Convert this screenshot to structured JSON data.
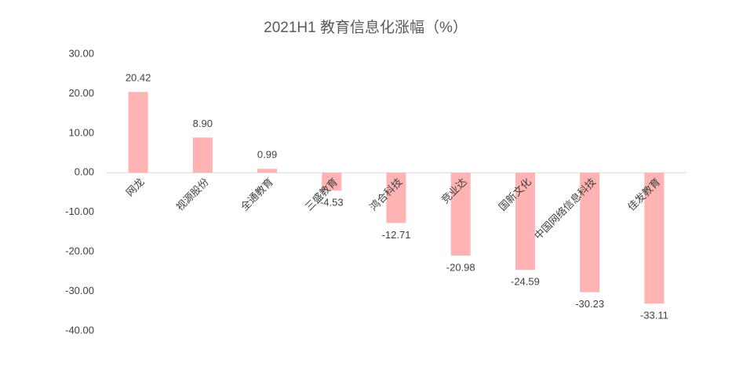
{
  "chart_data": {
    "type": "bar",
    "title": "2021H1 教育信息化涨幅（%）",
    "categories": [
      "网龙",
      "视源股份",
      "全通教育",
      "三盛教育",
      "鸿合科技",
      "竞业达",
      "国新文化",
      "中国网络信息科技",
      "佳发教育"
    ],
    "values": [
      20.42,
      8.9,
      0.99,
      -4.53,
      -12.71,
      -20.98,
      -24.59,
      -30.23,
      -33.11
    ],
    "value_labels": [
      "20.42",
      "8.90",
      "0.99",
      "-4.53",
      "-12.71",
      "-20.98",
      "-24.59",
      "-30.23",
      "-33.11"
    ],
    "color": "#ffb3b3",
    "ylim": [
      -40,
      30
    ],
    "yticks": [
      {
        "value": 30,
        "label": "30.00"
      },
      {
        "value": 20,
        "label": "20.00"
      },
      {
        "value": 10,
        "label": "10.00"
      },
      {
        "value": 0,
        "label": "0.00"
      },
      {
        "value": -10,
        "label": "-10.00"
      },
      {
        "value": -20,
        "label": "-20.00"
      },
      {
        "value": -30,
        "label": "-30.00"
      },
      {
        "value": -40,
        "label": "-40.00"
      }
    ],
    "grid": false
  }
}
